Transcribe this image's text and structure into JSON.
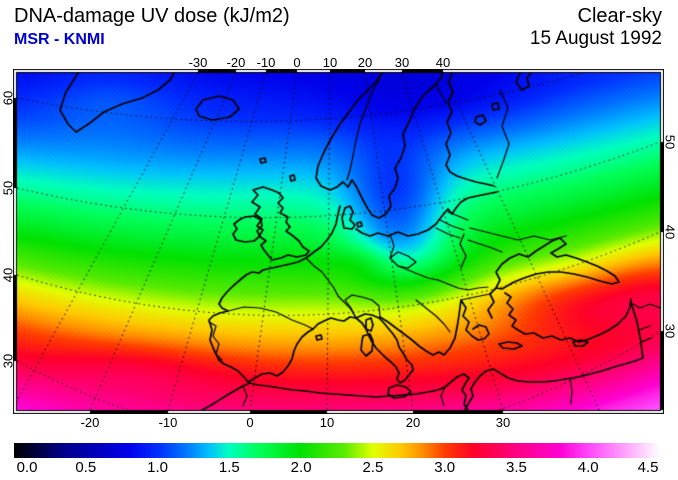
{
  "header": {
    "title": "DNA-damage UV dose (kJ/m2)",
    "subtitle": "MSR - KNMI",
    "subtitle_color": "#0000CC",
    "condition": "Clear-sky",
    "date": "15 August 1992"
  },
  "map": {
    "top_axis": [
      "-30",
      "-20",
      "-10",
      "0",
      "10",
      "20",
      "30",
      "40"
    ],
    "bottom_axis": [
      "-20",
      "-10",
      "0",
      "10",
      "20",
      "30"
    ],
    "left_axis": [
      "60",
      "50",
      "40",
      "30"
    ],
    "right_axis": [
      "50",
      "40",
      "30"
    ],
    "region": "Europe",
    "field": "DNA-damage UV dose",
    "sky": "clear-sky"
  },
  "colorbar": {
    "labels": [
      "0.0",
      "0.5",
      "1.0",
      "1.5",
      "2.0",
      "2.5",
      "3.0",
      "3.5",
      "4.0",
      "4.5"
    ],
    "min": 0.0,
    "max": 4.5,
    "units": "kJ/m2",
    "gradient_stops": [
      {
        "v": 0.0,
        "color": "#000000"
      },
      {
        "v": 0.35,
        "color": "#00008C"
      },
      {
        "v": 0.8,
        "color": "#0000EB"
      },
      {
        "v": 1.0,
        "color": "#002DFF"
      },
      {
        "v": 1.2,
        "color": "#0078FF"
      },
      {
        "v": 1.35,
        "color": "#00BEFF"
      },
      {
        "v": 1.5,
        "color": "#00FFBE"
      },
      {
        "v": 1.7,
        "color": "#00FF5A"
      },
      {
        "v": 2.0,
        "color": "#00E100"
      },
      {
        "v": 2.3,
        "color": "#5AEB00"
      },
      {
        "v": 2.5,
        "color": "#E1FF00"
      },
      {
        "v": 2.7,
        "color": "#FFC800"
      },
      {
        "v": 2.85,
        "color": "#FF8C00"
      },
      {
        "v": 3.0,
        "color": "#FF3C00"
      },
      {
        "v": 3.2,
        "color": "#FF0028"
      },
      {
        "v": 3.5,
        "color": "#FF0082"
      },
      {
        "v": 3.8,
        "color": "#FF00D2"
      },
      {
        "v": 4.0,
        "color": "#FF46FA"
      },
      {
        "v": 4.25,
        "color": "#FFA0FC"
      },
      {
        "v": 4.5,
        "color": "#FFFFFF"
      }
    ]
  }
}
